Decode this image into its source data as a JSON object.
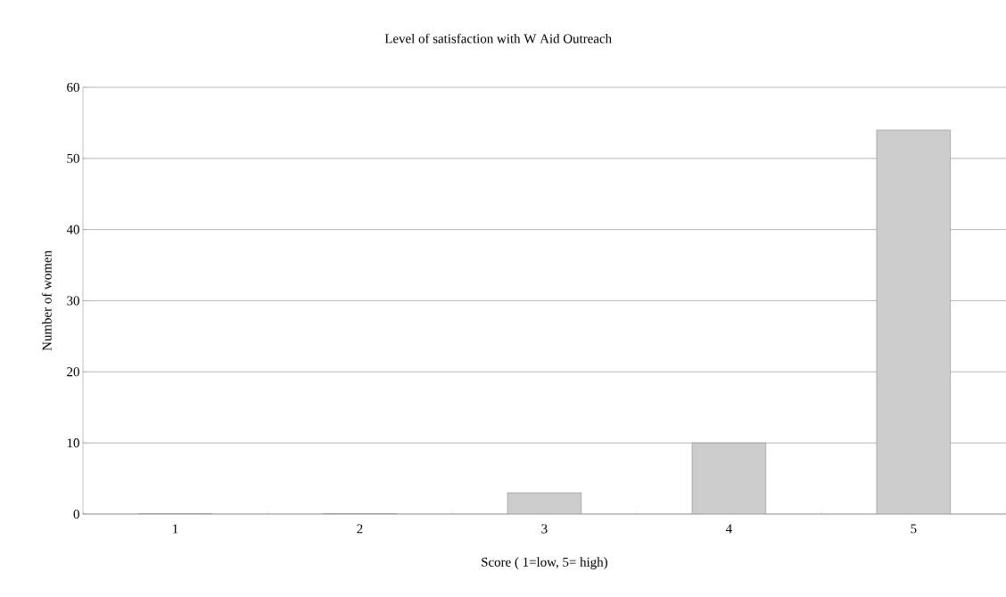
{
  "chart_data": {
    "type": "bar",
    "title": "Level of satisfaction with W Aid Outreach",
    "xlabel": "Score ( 1=low, 5= high)",
    "ylabel": "Number of women",
    "categories": [
      "1",
      "2",
      "3",
      "4",
      "5"
    ],
    "values": [
      0,
      0,
      3,
      10,
      54
    ],
    "color": "#cccccc",
    "ylim": [
      0,
      60
    ],
    "yticks": [
      0,
      10,
      20,
      30,
      40,
      50,
      60
    ],
    "grid": "y"
  }
}
